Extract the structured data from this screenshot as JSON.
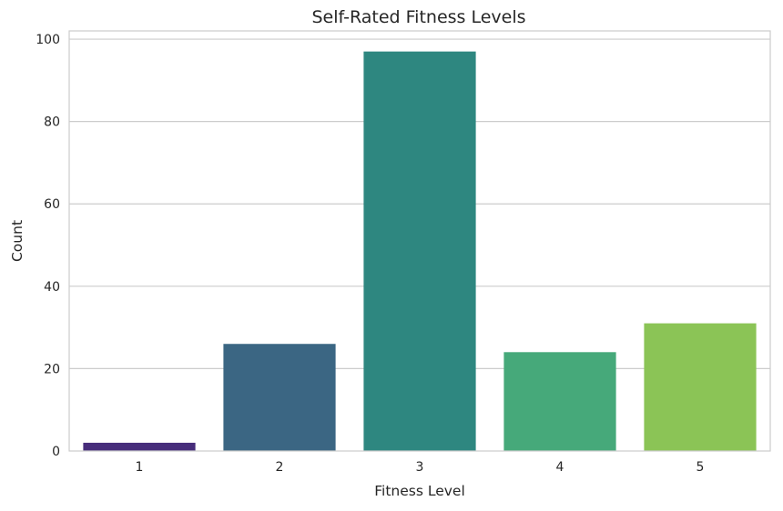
{
  "chart_data": {
    "type": "bar",
    "title": "Self-Rated Fitness Levels",
    "xlabel": "Fitness Level",
    "ylabel": "Count",
    "categories": [
      "1",
      "2",
      "3",
      "4",
      "5"
    ],
    "values": [
      2,
      26,
      97,
      24,
      31
    ],
    "ylim": [
      0,
      102
    ],
    "yticks": [
      0,
      20,
      40,
      60,
      80,
      100
    ],
    "grid": true,
    "colors": [
      "#472d7b",
      "#3b6683",
      "#2e8780",
      "#46a97a",
      "#8bc456"
    ]
  }
}
